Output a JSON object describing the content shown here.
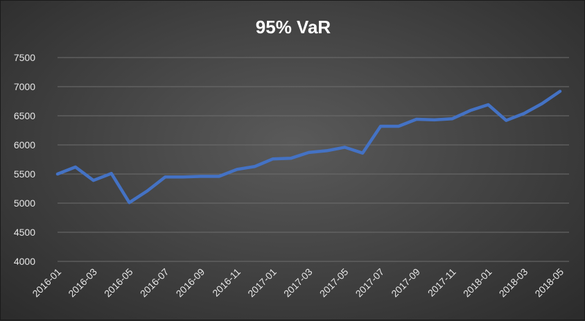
{
  "chart_data": {
    "type": "line",
    "title": "95% VaR",
    "xlabel": "",
    "ylabel": "",
    "ylim": [
      4000,
      7500
    ],
    "yticks": [
      4000,
      4500,
      5000,
      5500,
      6000,
      6500,
      7000,
      7500
    ],
    "grid": true,
    "legend": "none",
    "x": [
      "2016-01",
      "2016-02",
      "2016-03",
      "2016-04",
      "2016-05",
      "2016-06",
      "2016-07",
      "2016-08",
      "2016-09",
      "2016-10",
      "2016-11",
      "2016-12",
      "2017-01",
      "2017-02",
      "2017-03",
      "2017-04",
      "2017-05",
      "2017-06",
      "2017-07",
      "2017-08",
      "2017-09",
      "2017-10",
      "2017-11",
      "2017-12",
      "2018-01",
      "2018-02",
      "2018-03",
      "2018-04",
      "2018-05"
    ],
    "x_tick_labels": [
      "2016-01",
      "2016-03",
      "2016-05",
      "2016-07",
      "2016-09",
      "2016-11",
      "2017-01",
      "2017-03",
      "2017-05",
      "2017-07",
      "2017-09",
      "2017-11",
      "2018-01",
      "2018-03",
      "2018-05"
    ],
    "series": [
      {
        "values": [
          5500,
          5620,
          5390,
          5510,
          5010,
          5210,
          5450,
          5450,
          5460,
          5460,
          5580,
          5630,
          5760,
          5770,
          5870,
          5900,
          5960,
          5860,
          6320,
          6320,
          6440,
          6430,
          6450,
          6590,
          6690,
          6420,
          6540,
          6710,
          6920
        ],
        "color": "#4472c4"
      }
    ],
    "colors": {
      "line": "#4472c4",
      "grid": "#6e6e6e",
      "text": "#e8e8e8"
    }
  }
}
